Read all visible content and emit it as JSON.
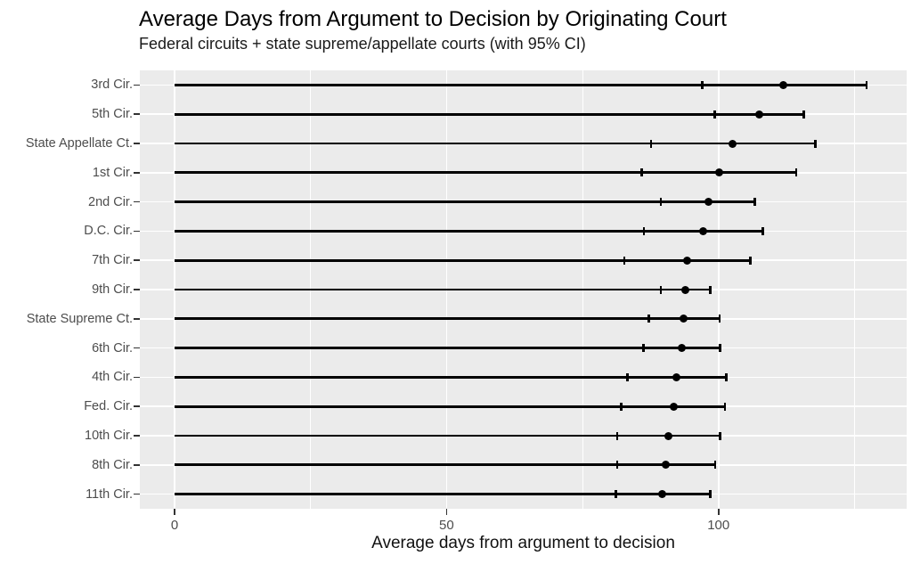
{
  "chart_data": {
    "type": "scatter",
    "subtype": "horizontal point-range (lollipop) chart with 95% confidence-interval error bars",
    "title": "Average Days from Argument to Decision by Originating Court",
    "subtitle": "Federal circuits + state supreme/appellate courts (with 95% CI)",
    "xlabel": "Average days from argument to decision",
    "ylabel": "",
    "x_ticks": [
      0,
      50,
      100
    ],
    "x_minor_gridlines": [
      25,
      75,
      125
    ],
    "xlim": [
      -6.4,
      134.6
    ],
    "stem_start": 0,
    "legend": "none",
    "grid": "on",
    "categories": [
      "3rd Cir.",
      "5th Cir.",
      "State Appellate Ct.",
      "1st Cir.",
      "2nd Cir.",
      "D.C. Cir.",
      "7th Cir.",
      "9th Cir.",
      "State Supreme Ct.",
      "6th Cir.",
      "4th Cir.",
      "Fed. Cir.",
      "10th Cir.",
      "8th Cir.",
      "11th Cir."
    ],
    "points": [
      {
        "court": "3rd Cir.",
        "mean": 112.0,
        "ci_low": 97.0,
        "ci_high": 127.2
      },
      {
        "court": "5th Cir.",
        "mean": 107.5,
        "ci_low": 99.3,
        "ci_high": 115.7
      },
      {
        "court": "State Appellate Ct.",
        "mean": 102.6,
        "ci_low": 87.6,
        "ci_high": 117.8
      },
      {
        "court": "1st Cir.",
        "mean": 100.1,
        "ci_low": 85.9,
        "ci_high": 114.3
      },
      {
        "court": "2nd Cir.",
        "mean": 98.2,
        "ci_low": 89.4,
        "ci_high": 106.7
      },
      {
        "court": "D.C. Cir.",
        "mean": 97.2,
        "ci_low": 86.3,
        "ci_high": 108.2
      },
      {
        "court": "7th Cir.",
        "mean": 94.3,
        "ci_low": 82.7,
        "ci_high": 105.9
      },
      {
        "court": "9th Cir.",
        "mean": 93.9,
        "ci_low": 89.4,
        "ci_high": 98.5
      },
      {
        "court": "State Supreme Ct.",
        "mean": 93.6,
        "ci_low": 87.2,
        "ci_high": 100.2
      },
      {
        "court": "6th Cir.",
        "mean": 93.3,
        "ci_low": 86.2,
        "ci_high": 100.3
      },
      {
        "court": "4th Cir.",
        "mean": 92.3,
        "ci_low": 83.3,
        "ci_high": 101.4
      },
      {
        "court": "Fed. Cir.",
        "mean": 91.7,
        "ci_low": 82.1,
        "ci_high": 101.2
      },
      {
        "court": "10th Cir.",
        "mean": 90.8,
        "ci_low": 81.4,
        "ci_high": 100.3
      },
      {
        "court": "8th Cir.",
        "mean": 90.3,
        "ci_low": 81.4,
        "ci_high": 99.4
      },
      {
        "court": "11th Cir.",
        "mean": 89.7,
        "ci_low": 81.1,
        "ci_high": 98.5
      }
    ],
    "style": {
      "background": "#ffffff",
      "panel_bg": "#ebebeb",
      "grid_color": "#ffffff",
      "data_color": "#000000",
      "axis_text_color": "#4d4d4d",
      "tick_color": "#333333",
      "title_color": "#000000"
    }
  }
}
